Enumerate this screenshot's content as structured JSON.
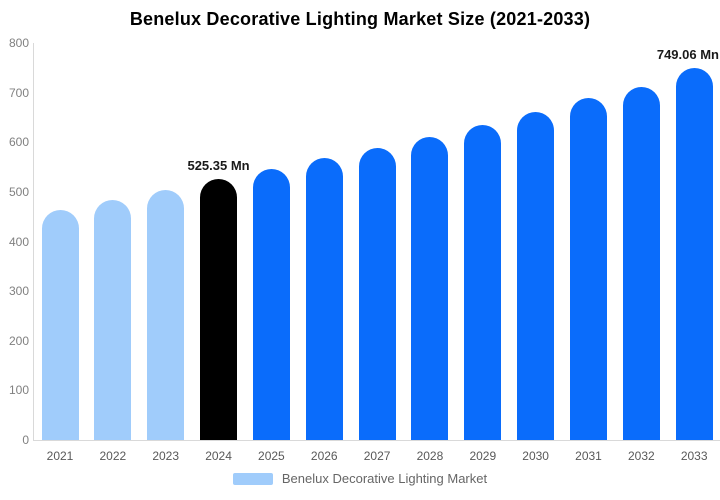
{
  "chart_data": {
    "type": "bar",
    "title": "Benelux Decorative Lighting Market Size (2021-2033)",
    "unit": "Mn",
    "categories": [
      "2021",
      "2022",
      "2023",
      "2024",
      "2025",
      "2026",
      "2027",
      "2028",
      "2029",
      "2030",
      "2031",
      "2032",
      "2033"
    ],
    "values": [
      464,
      484,
      504,
      525.35,
      546,
      568,
      588,
      611,
      635,
      661,
      689,
      711,
      749.06
    ],
    "bar_colors": [
      "#a0ccfb",
      "#a0ccfb",
      "#a0ccfb",
      "#000000",
      "#0a6cfb",
      "#0a6cfb",
      "#0a6cfb",
      "#0a6cfb",
      "#0a6cfb",
      "#0a6cfb",
      "#0a6cfb",
      "#0a6cfb",
      "#0a6cfb"
    ],
    "data_labels": [
      {
        "index": 3,
        "text": "525.35 Mn"
      },
      {
        "index": 12,
        "text": "749.06 Mn"
      }
    ],
    "xlabel": "",
    "ylabel": "",
    "ylim": [
      0,
      800
    ],
    "ytick_step": 100,
    "grid": false,
    "legend_position": "bottom",
    "legend": [
      {
        "label": "Benelux Decorative Lighting Market",
        "color": "#a0ccfb"
      }
    ]
  },
  "styles": {
    "background": "#ffffff",
    "title_color": "#000000",
    "axis_line_color": "#d9d9d9",
    "ytick_color": "#808080",
    "xtick_color": "#595959",
    "data_label_color": "#1a1a1a",
    "legend_text_color": "#666666",
    "bar_past_color": "#a0ccfb",
    "bar_current_color": "#000000",
    "bar_forecast_color": "#0a6cfb"
  }
}
